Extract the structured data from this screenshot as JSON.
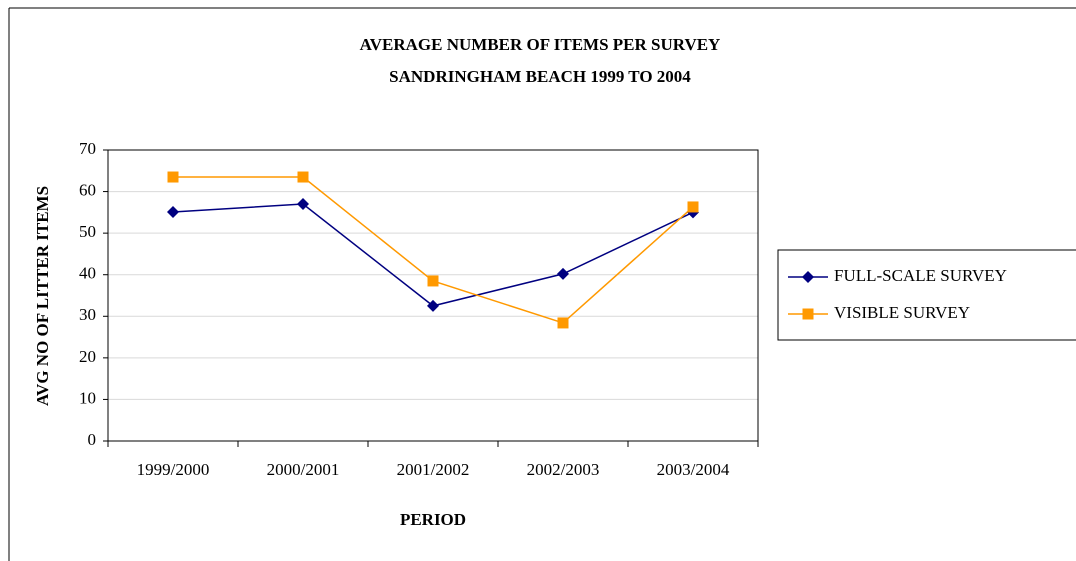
{
  "chart_data": {
    "type": "line",
    "title": [
      "AVERAGE NUMBER OF ITEMS PER SURVEY",
      "SANDRINGHAM BEACH 1999 TO 2004"
    ],
    "x_label": "PERIOD",
    "y_label": "AVG NO OF LITTER ITEMS",
    "categories": [
      "1999/2000",
      "2000/2001",
      "2001/2002",
      "2002/2003",
      "2003/2004"
    ],
    "series": [
      {
        "name": "FULL-SCALE SURVEY",
        "color": "#000080",
        "marker": "diamond",
        "values": [
          55.1,
          57.0,
          32.5,
          40.2,
          55.0
        ]
      },
      {
        "name": "VISIBLE SURVEY",
        "color": "#ff9900",
        "marker": "square",
        "values": [
          63.5,
          63.5,
          38.5,
          28.4,
          56.3
        ]
      }
    ],
    "ylim": [
      0,
      70
    ],
    "yticks": [
      0,
      10,
      20,
      30,
      40,
      50,
      60,
      70
    ],
    "grid": true,
    "legend": "right"
  }
}
